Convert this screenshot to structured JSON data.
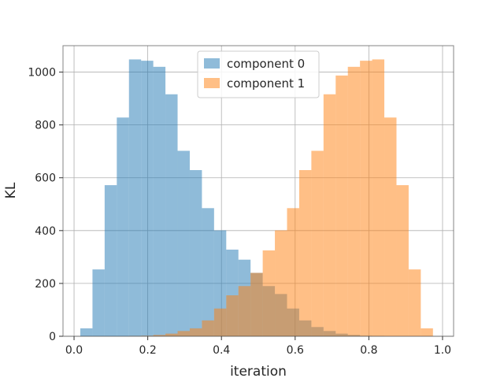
{
  "chart_data": {
    "type": "bar",
    "subtype": "overlapping-histogram",
    "title": "",
    "xlabel": "iteration",
    "ylabel": "KL",
    "xlim": [
      -0.03,
      1.03
    ],
    "ylim": [
      0,
      1100
    ],
    "xticks": [
      0.0,
      0.2,
      0.4,
      0.6,
      0.8,
      1.0
    ],
    "xtick_labels": [
      "0.0",
      "0.2",
      "0.4",
      "0.6",
      "0.8",
      "1.0"
    ],
    "yticks": [
      0,
      200,
      400,
      600,
      800,
      1000
    ],
    "ytick_labels": [
      "0",
      "200",
      "400",
      "600",
      "800",
      "1000"
    ],
    "grid": true,
    "legend_position": "top-center",
    "bin_edges": [
      0.017,
      0.05,
      0.083,
      0.116,
      0.149,
      0.182,
      0.215,
      0.248,
      0.281,
      0.314,
      0.347,
      0.38,
      0.413,
      0.446,
      0.479,
      0.512,
      0.545,
      0.578,
      0.611,
      0.644,
      0.677,
      0.71,
      0.743,
      0.776,
      0.809,
      0.842,
      0.875,
      0.908,
      0.941,
      0.974
    ],
    "series": [
      {
        "name": "component 0",
        "color": "#1f77b4",
        "alpha": 0.5,
        "bin_edges": [
          0.017,
          0.05,
          0.083,
          0.116,
          0.149,
          0.182,
          0.215,
          0.248,
          0.281,
          0.314,
          0.347,
          0.38,
          0.413,
          0.446,
          0.479,
          0.512,
          0.545,
          0.578,
          0.611,
          0.644,
          0.677,
          0.71,
          0.743,
          0.776,
          0.809,
          0.842,
          0.875,
          0.908,
          0.941,
          0.974
        ],
        "values": [
          30,
          253,
          572,
          828,
          1048,
          1043,
          1020,
          916,
          702,
          629,
          485,
          401,
          328,
          290,
          240,
          190,
          160,
          105,
          60,
          35,
          20,
          10,
          5,
          2,
          1,
          0,
          0,
          0,
          0
        ]
      },
      {
        "name": "component 1",
        "color": "#ff7f0e",
        "alpha": 0.5,
        "bin_edges": [
          0.017,
          0.05,
          0.083,
          0.116,
          0.149,
          0.182,
          0.215,
          0.248,
          0.281,
          0.314,
          0.347,
          0.38,
          0.413,
          0.446,
          0.479,
          0.512,
          0.545,
          0.578,
          0.611,
          0.644,
          0.677,
          0.71,
          0.743,
          0.776,
          0.809,
          0.842,
          0.875,
          0.908,
          0.941,
          0.974
        ],
        "values": [
          0,
          0,
          0,
          0,
          1,
          2,
          5,
          10,
          20,
          30,
          60,
          105,
          155,
          190,
          240,
          325,
          401,
          485,
          629,
          702,
          916,
          987,
          1020,
          1043,
          1048,
          828,
          572,
          253,
          30
        ]
      }
    ]
  }
}
